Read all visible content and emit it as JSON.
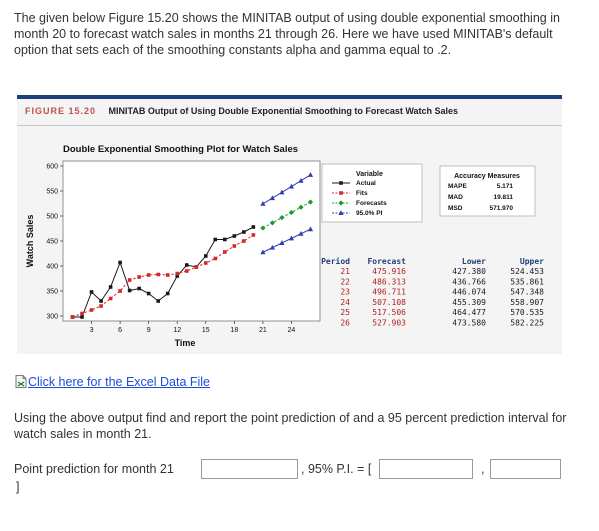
{
  "intro_text": "The given below Figure 15.20 shows the MINITAB output of using double exponential smoothing in month 20 to forecast watch sales in months 21 through 26. Here we have used MINITAB's default option that sets each of the smoothing constants alpha and gamma equal to .2.",
  "figure": {
    "number": "FIGURE 15.20",
    "caption": "MINITAB Output of Using Double Exponential Smoothing to Forecast Watch Sales"
  },
  "chart_data": {
    "type": "line",
    "title": "Double Exponential Smoothing Plot for Watch Sales",
    "xlabel": "Time",
    "ylabel": "Watch Sales",
    "xlim": [
      0,
      27
    ],
    "ylim": [
      290,
      610
    ],
    "x_ticks": [
      3,
      6,
      9,
      12,
      15,
      18,
      21,
      24
    ],
    "y_ticks": [
      300,
      350,
      400,
      450,
      500,
      550,
      600
    ],
    "legend_title": "Variable",
    "legend_position": "top-right",
    "series": [
      {
        "name": "Actual",
        "color": "#1a1a1a",
        "marker": "square",
        "x": [
          1,
          2,
          3,
          4,
          5,
          6,
          7,
          8,
          9,
          10,
          11,
          12,
          13,
          14,
          15,
          16,
          17,
          18,
          19,
          20
        ],
        "values": [
          298,
          298,
          348,
          330,
          358,
          407,
          351,
          355,
          345,
          330,
          345,
          380,
          402,
          398,
          420,
          453,
          453,
          460,
          468,
          478
        ]
      },
      {
        "name": "Fits",
        "color": "#d62728",
        "marker": "square",
        "x": [
          1,
          2,
          3,
          4,
          5,
          6,
          7,
          8,
          9,
          10,
          11,
          12,
          13,
          14,
          15,
          16,
          17,
          18,
          19,
          20
        ],
        "values": [
          298,
          305,
          312,
          320,
          335,
          350,
          372,
          378,
          382,
          383,
          382,
          385,
          390,
          398,
          406,
          415,
          428,
          440,
          450,
          462
        ]
      },
      {
        "name": "Forecasts",
        "color": "#1a9c2a",
        "marker": "diamond",
        "x": [
          21,
          22,
          23,
          24,
          25,
          26
        ],
        "values": [
          475.916,
          486.313,
          496.711,
          507.108,
          517.506,
          527.903
        ]
      },
      {
        "name": "95.0% PI",
        "color": "#2b3fb0",
        "marker": "triangle",
        "x": [
          21,
          22,
          23,
          24,
          25,
          26
        ],
        "lower": [
          427.38,
          436.766,
          446.074,
          455.309,
          464.477,
          473.58
        ],
        "upper": [
          524.453,
          535.861,
          547.348,
          558.907,
          570.535,
          582.225
        ]
      }
    ]
  },
  "accuracy": {
    "title": "Accuracy Measures",
    "rows": [
      {
        "label": "MAPE",
        "value": "5.171"
      },
      {
        "label": "MAD",
        "value": "19.811"
      },
      {
        "label": "MSD",
        "value": "571.970"
      }
    ]
  },
  "forecast_table": {
    "headers": [
      "Period",
      "Forecast",
      "Lower",
      "Upper"
    ],
    "rows": [
      [
        "21",
        "475.916",
        "427.380",
        "524.453"
      ],
      [
        "22",
        "486.313",
        "436.766",
        "535.861"
      ],
      [
        "23",
        "496.711",
        "446.074",
        "547.348"
      ],
      [
        "24",
        "507.108",
        "455.309",
        "558.907"
      ],
      [
        "25",
        "517.506",
        "464.477",
        "570.535"
      ],
      [
        "26",
        "527.903",
        "473.580",
        "582.225"
      ]
    ]
  },
  "excel_link_text": "Click here for the Excel Data File",
  "question_text": "Using the above output find and report the point prediction of and a 95 percent prediction interval for watch sales in month 21.",
  "answer": {
    "point_label": "Point prediction for month 21",
    "point_value": "",
    "pi_label": ", 95% P.I. = [",
    "lower_value": "",
    "comma": ",",
    "upper_value": "",
    "close": "]"
  }
}
